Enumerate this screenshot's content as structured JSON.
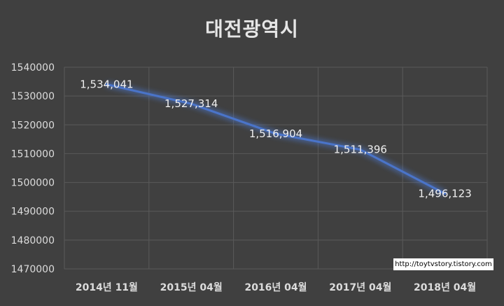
{
  "chart_data": {
    "type": "line",
    "title": "대전광역시",
    "xlabel": "",
    "ylabel": "",
    "categories": [
      "2014년 11월",
      "2015년 04월",
      "2016년 04월",
      "2017년 04월",
      "2018년 04월"
    ],
    "series": [
      {
        "values": [
          1534041,
          1527314,
          1516904,
          1511396,
          1496123
        ],
        "labels": [
          "1,534,041",
          "1,527,314",
          "1,516,904",
          "1,511,396",
          "1,496,123"
        ]
      }
    ],
    "ylim": [
      1470000,
      1540000
    ],
    "yticks": [
      1540000,
      1530000,
      1520000,
      1510000,
      1500000,
      1490000,
      1480000,
      1470000
    ],
    "ytick_labels": [
      "1540000",
      "1530000",
      "1520000",
      "1510000",
      "1500000",
      "1490000",
      "1480000",
      "1470000"
    ],
    "grid": true,
    "line_color": "#4a74c9",
    "background_color": "#404040"
  },
  "watermark": "http://toytvstory.tistory.com"
}
